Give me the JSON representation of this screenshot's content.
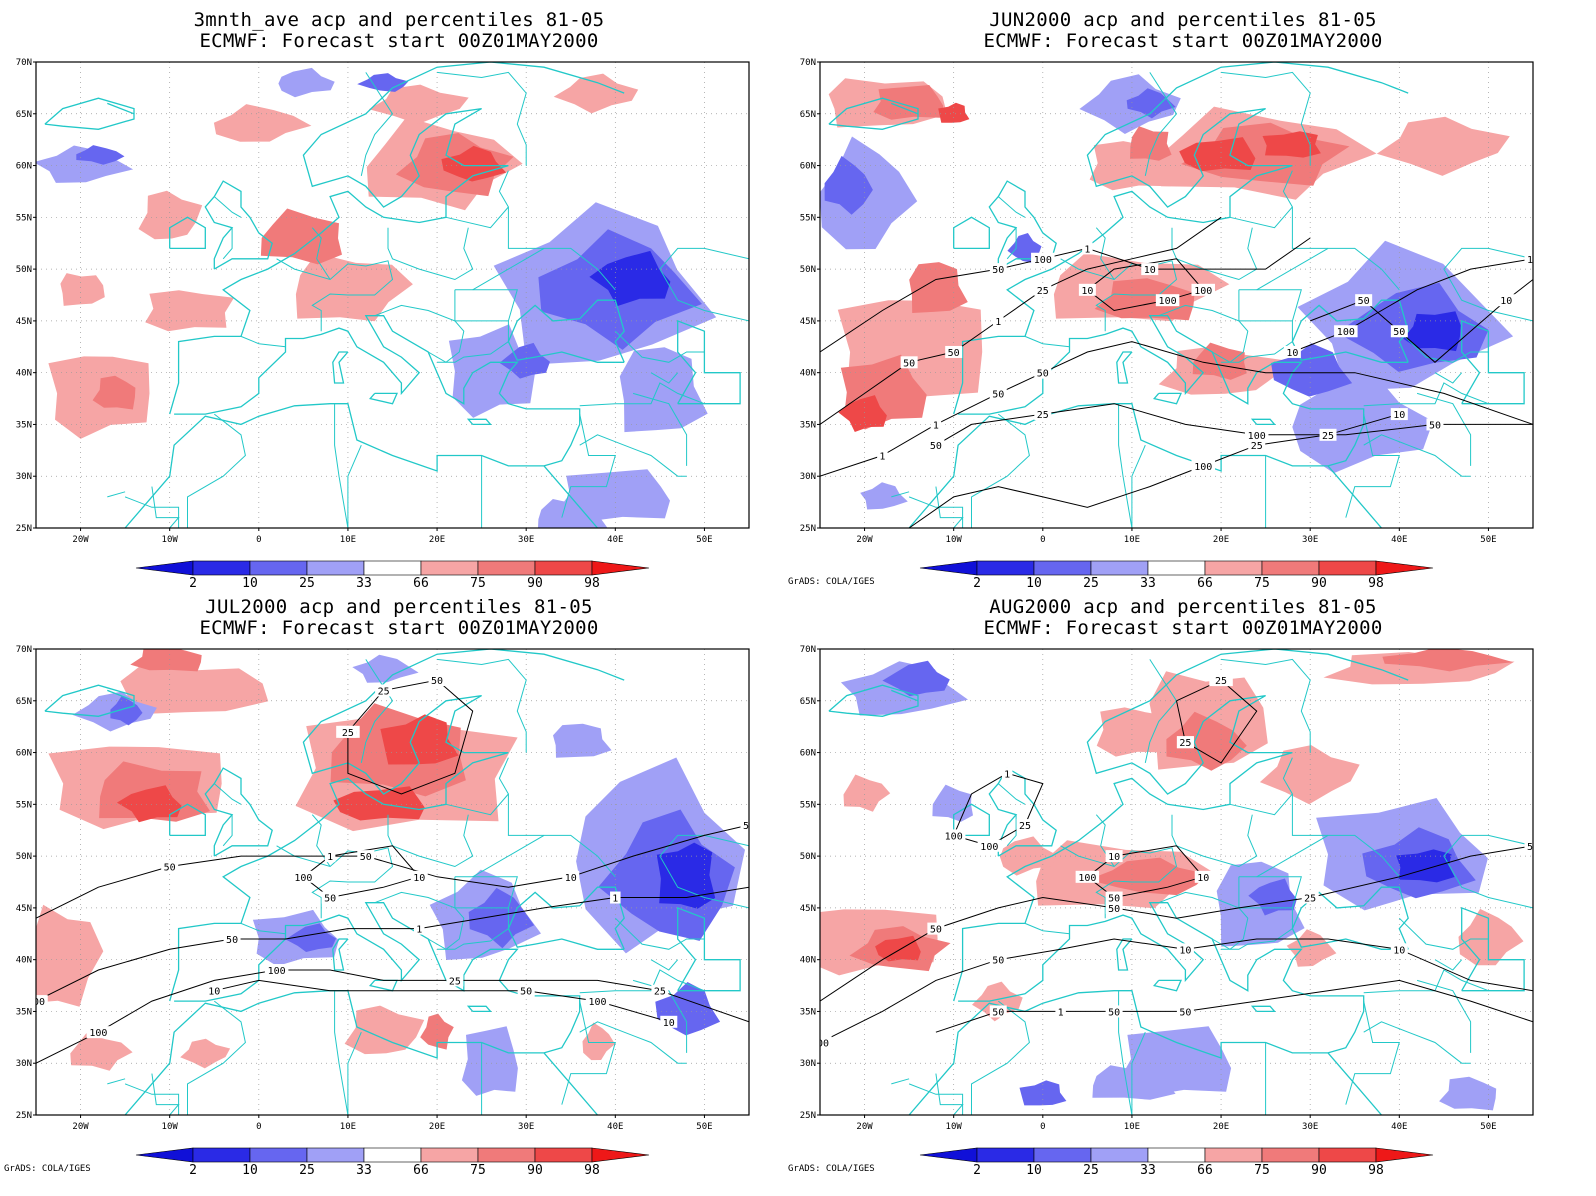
{
  "figure": {
    "colors": {
      "blue_lt": "#a0a0f6",
      "blue_md": "#6666f0",
      "blue_dk": "#2a2ae6",
      "blue_xd": "#1010d8",
      "red_lt": "#f6a5a5",
      "red_md": "#f07a7a",
      "red_dk": "#ee4848",
      "red_xd": "#ee1818",
      "coast": "#22c8c8",
      "contour": "#000000"
    },
    "map_extent": {
      "lon": [
        -25,
        55
      ],
      "lat": [
        25,
        70
      ]
    },
    "lat_ticks": [
      "25N",
      "30N",
      "35N",
      "40N",
      "45N",
      "50N",
      "55N",
      "60N",
      "65N",
      "70N"
    ],
    "lon_ticks": [
      "20W",
      "10W",
      "0",
      "10E",
      "20E",
      "30E",
      "40E",
      "50E"
    ],
    "colorbar_labels": [
      "2",
      "10",
      "25",
      "33",
      "66",
      "75",
      "90",
      "98"
    ],
    "credit": "GrADS: COLA/IGES"
  },
  "panels": [
    {
      "title_line1": "3mnth_ave acp and percentiles 81-05",
      "title_line2": "ECMWF: Forecast start 00Z01MAY2000",
      "show_credit": false,
      "contour_labels": []
    },
    {
      "title_line1": "JUN2000 acp and percentiles 81-05",
      "title_line2": "ECMWF: Forecast start 00Z01MAY2000",
      "show_credit": true,
      "contour_labels": [
        "50",
        "50",
        "50",
        "100",
        "100",
        "100",
        "50",
        "100",
        "50",
        "100",
        "50",
        "50",
        "25",
        "10",
        "10",
        "10",
        "1",
        "1",
        "1",
        "50",
        "25",
        "10",
        "50",
        "100",
        "25",
        "10",
        "1",
        "25",
        "10"
      ]
    },
    {
      "title_line1": "JUL2000 acp and percentiles 81-05",
      "title_line2": "ECMWF: Forecast start 00Z01MAY2000",
      "show_credit": true,
      "contour_labels": [
        "50",
        "50",
        "100",
        "50",
        "100",
        "100",
        "50",
        "100",
        "100",
        "100",
        "50",
        "25",
        "10",
        "1",
        "25",
        "10",
        "10",
        "25",
        "50",
        "1",
        "25",
        "10",
        "1",
        "50"
      ]
    },
    {
      "title_line1": "AUG2000 acp and percentiles 81-05",
      "title_line2": "ECMWF: Forecast start 00Z01MAY2000",
      "show_credit": true,
      "contour_labels": [
        "50",
        "50",
        "50",
        "100",
        "100",
        "100",
        "50",
        "100",
        "50",
        "100",
        "50",
        "50",
        "25",
        "10",
        "1",
        "1",
        "10",
        "25",
        "50",
        "10",
        "50",
        "25",
        "10",
        "25"
      ]
    }
  ]
}
